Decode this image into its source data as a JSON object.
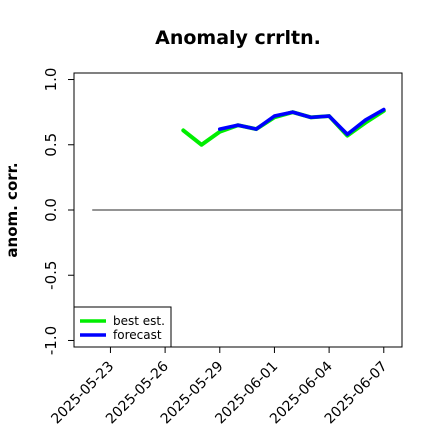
{
  "chart_data": {
    "type": "line",
    "title": "Anomaly crrltn.",
    "xlabel": "",
    "ylabel": "anom. corr.",
    "x_start": "2025-05-21",
    "x": [
      "2025-05-27",
      "2025-05-28",
      "2025-05-29",
      "2025-05-30",
      "2025-05-31",
      "2025-06-01",
      "2025-06-02",
      "2025-06-03",
      "2025-06-04",
      "2025-06-05",
      "2025-06-06",
      "2025-06-07"
    ],
    "series": [
      {
        "name": "best est.",
        "color": "#00ee00",
        "values": [
          0.61,
          0.5,
          0.6,
          0.65,
          0.62,
          0.71,
          0.75,
          0.71,
          0.72,
          0.57,
          0.67,
          0.76
        ]
      },
      {
        "name": "forecast",
        "color": "#0000ff",
        "values": [
          null,
          null,
          0.62,
          0.65,
          0.62,
          0.72,
          0.75,
          0.71,
          0.72,
          0.58,
          0.69,
          0.77
        ]
      }
    ],
    "ylim": [
      -1.05,
      1.05
    ],
    "yticks": [
      -1.0,
      -0.5,
      0.0,
      0.5,
      1.0
    ],
    "ytick_labels": [
      "-1.0",
      "-0.5",
      "0.0",
      "0.5",
      "1.0"
    ],
    "xlim": [
      "2025-05-21",
      "2025-06-08"
    ],
    "xtick_labels": [
      "2025-05-23",
      "2025-05-26",
      "2025-05-29",
      "2025-06-01",
      "2025-06-04",
      "2025-06-07"
    ],
    "xtick_colors": [
      "#000000",
      "#000000",
      "#008000",
      "#000000",
      "#000000",
      "#000000"
    ],
    "hline": 0.0,
    "hline_range": [
      "2025-05-22",
      "2025-06-08"
    ],
    "grid": false,
    "legend_placement": "bottom-left"
  }
}
